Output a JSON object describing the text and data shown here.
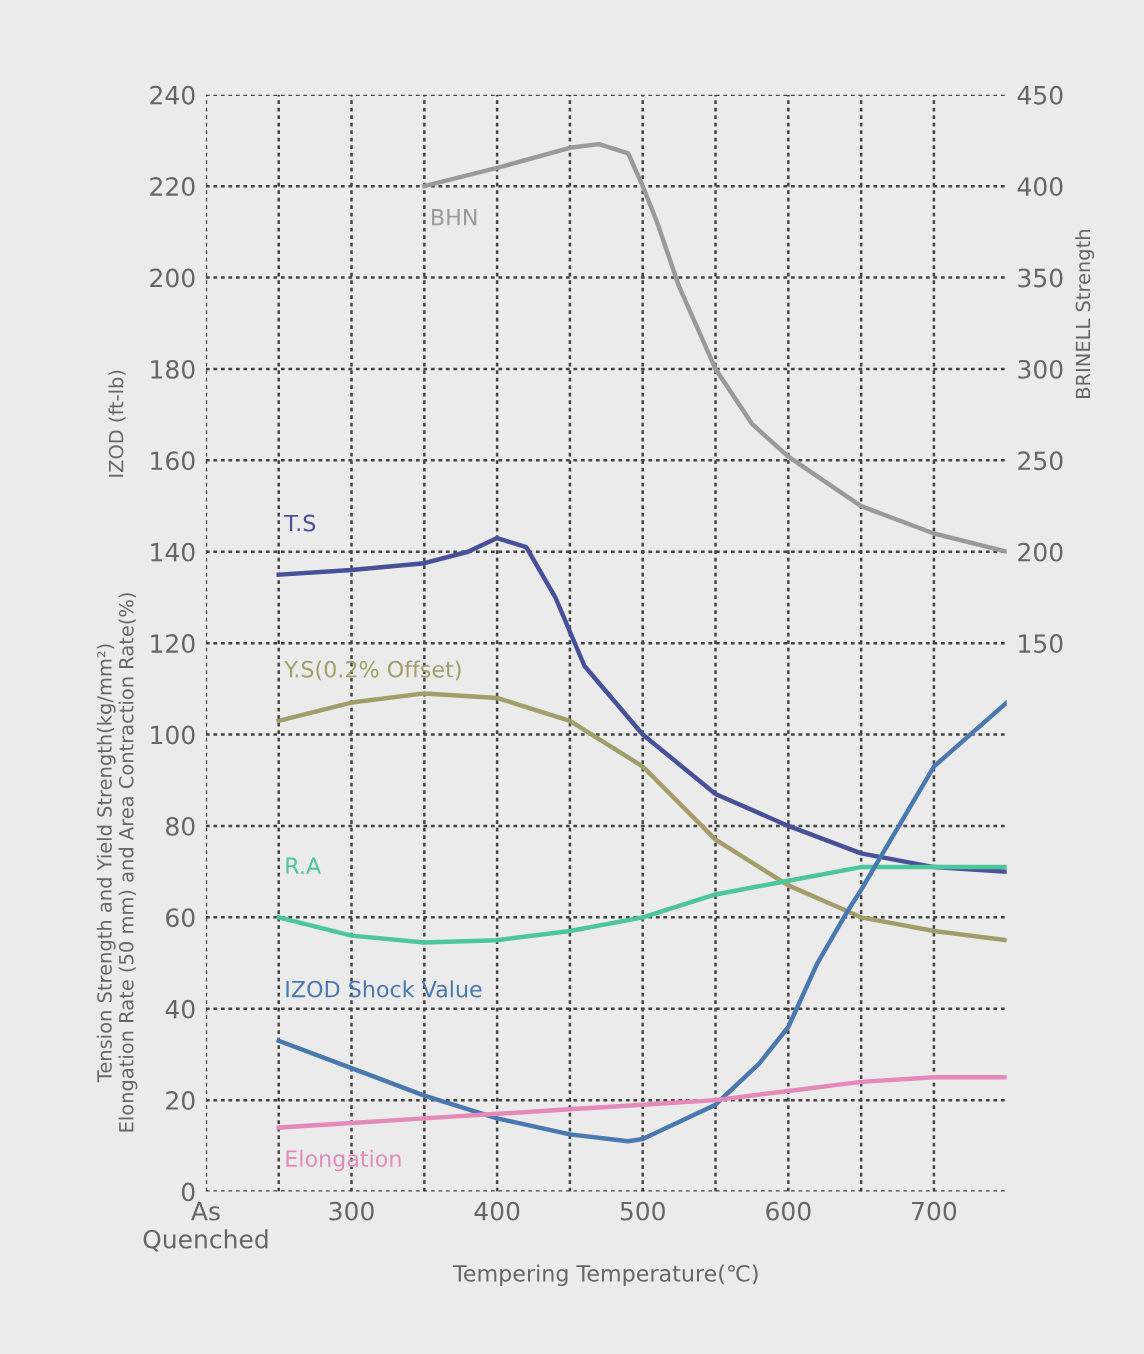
{
  "chart_data": {
    "type": "line",
    "xlabel": "Tempering Temperature(℃)",
    "ylabel": "Tension Strength and Yield Strength(kg/mm²)\nElongation Rate (50 mm) and Area Contraction Rate(%)",
    "y2label": "BRINELL Strength",
    "annotations": [
      "IZOD (ft-lb)"
    ],
    "xlim": [
      200,
      750
    ],
    "xticks": [
      {
        "value": 200,
        "label": "As\nQuenched"
      },
      {
        "value": 250,
        "label": null
      },
      300,
      {
        "value": 350,
        "label": null
      },
      400,
      {
        "value": 450,
        "label": null
      },
      500,
      {
        "value": 550,
        "label": null
      },
      600,
      {
        "value": 650,
        "label": null
      },
      700
    ],
    "ylim": [
      0,
      240
    ],
    "yticks": [
      0,
      20,
      40,
      60,
      80,
      100,
      120,
      140,
      160,
      180,
      200,
      220,
      240
    ],
    "y2lim": [
      -150,
      450
    ],
    "y2ticks": [
      150,
      200,
      250,
      300,
      350,
      400,
      450
    ],
    "grid": true,
    "marker": "none",
    "line_style": "solid",
    "series": [
      {
        "name": "BHN",
        "color": "#9a9a9a",
        "axis": "y2",
        "x": [
          350,
          400,
          450,
          470,
          490,
          500,
          510,
          525,
          550,
          575,
          600,
          650,
          700,
          750
        ],
        "values": [
          400,
          410,
          421,
          423,
          418,
          400,
          380,
          345,
          300,
          270,
          252,
          225,
          210,
          200
        ]
      },
      {
        "name": "T.S",
        "color": "#4a4f9a",
        "x": [
          250,
          300,
          350,
          380,
          400,
          420,
          440,
          460,
          500,
          550,
          600,
          650,
          700,
          750
        ],
        "values": [
          135,
          136,
          137.5,
          140,
          143,
          141,
          130,
          115,
          100,
          87,
          80,
          74,
          71,
          70
        ]
      },
      {
        "name": "Y.S(0.2% Offset)",
        "color": "#a39d6c",
        "x": [
          250,
          300,
          350,
          400,
          450,
          500,
          550,
          600,
          650,
          700,
          750
        ],
        "values": [
          103,
          107,
          109,
          108,
          103,
          93,
          77,
          67,
          60,
          57,
          55
        ]
      },
      {
        "name": "R.A",
        "color": "#4cc69a",
        "x": [
          250,
          300,
          350,
          400,
          450,
          500,
          550,
          600,
          650,
          700,
          750
        ],
        "values": [
          60,
          56,
          54.5,
          55,
          57,
          60,
          65,
          68,
          71,
          71,
          71
        ]
      },
      {
        "name": "IZOD Shock Value",
        "color": "#4a78b0",
        "x": [
          250,
          300,
          350,
          400,
          450,
          490,
          500,
          550,
          580,
          600,
          620,
          640,
          650,
          700,
          750
        ],
        "values": [
          33,
          27,
          21,
          16,
          12.5,
          11,
          11.5,
          19,
          28,
          36,
          50,
          61,
          66,
          93,
          107
        ]
      },
      {
        "name": "Elongation",
        "color": "#e58ab8",
        "x": [
          250,
          300,
          350,
          400,
          450,
          500,
          550,
          600,
          650,
          700,
          750
        ],
        "values": [
          14,
          15,
          16,
          17,
          18,
          19,
          20,
          22,
          24,
          25,
          25
        ]
      }
    ]
  }
}
